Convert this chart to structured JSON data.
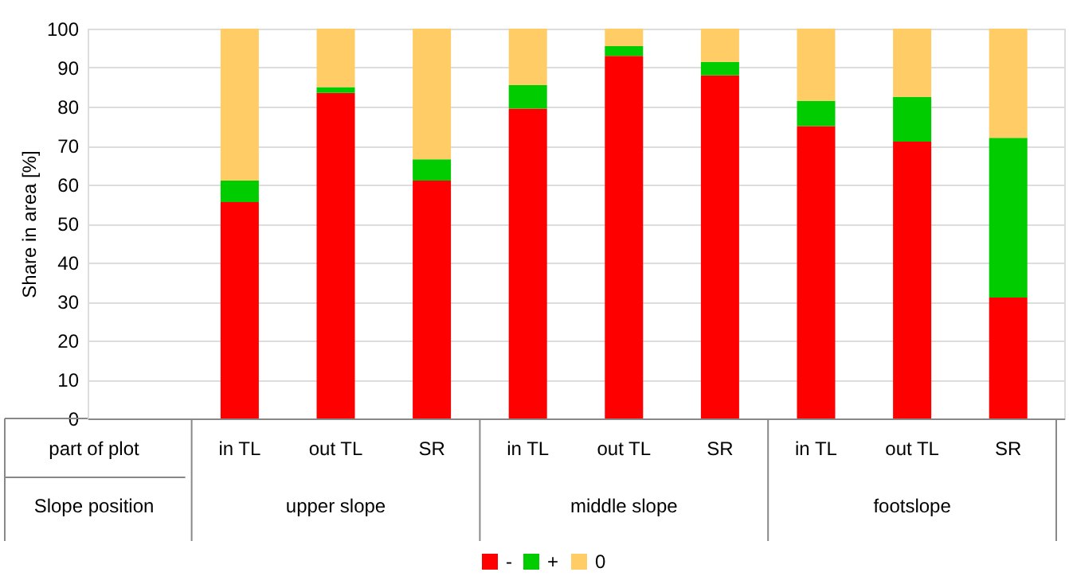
{
  "chart_data": {
    "type": "bar",
    "stacked": true,
    "ylabel": "Share in area [%]",
    "categories": [
      null,
      "in TL",
      "out TL",
      "SR",
      "in TL",
      "out TL",
      "SR",
      "in TL",
      "out TL",
      "SR"
    ],
    "annotations": [
      "part of plot",
      "Slope position",
      "upper slope",
      "middle slope",
      "footslope"
    ],
    "series": [
      {
        "name": "-",
        "color": "#ff0000",
        "values": [
          null,
          55.5,
          83.5,
          61,
          79.5,
          93,
          88,
          75,
          71,
          31
        ]
      },
      {
        "name": "+",
        "color": "#00cc00",
        "values": [
          null,
          5.5,
          1.5,
          5.5,
          6,
          2.5,
          3.5,
          6.5,
          11.5,
          41
        ]
      },
      {
        "name": "0",
        "color": "#ffcc66",
        "values": [
          null,
          39,
          15,
          33.5,
          14.5,
          4.5,
          8.5,
          18.5,
          17.5,
          28
        ]
      }
    ],
    "ylim": [
      0,
      100
    ],
    "yticks": [
      0,
      10,
      20,
      30,
      40,
      50,
      60,
      70,
      80,
      90,
      100
    ],
    "grid": "y",
    "legend": "bottom"
  }
}
